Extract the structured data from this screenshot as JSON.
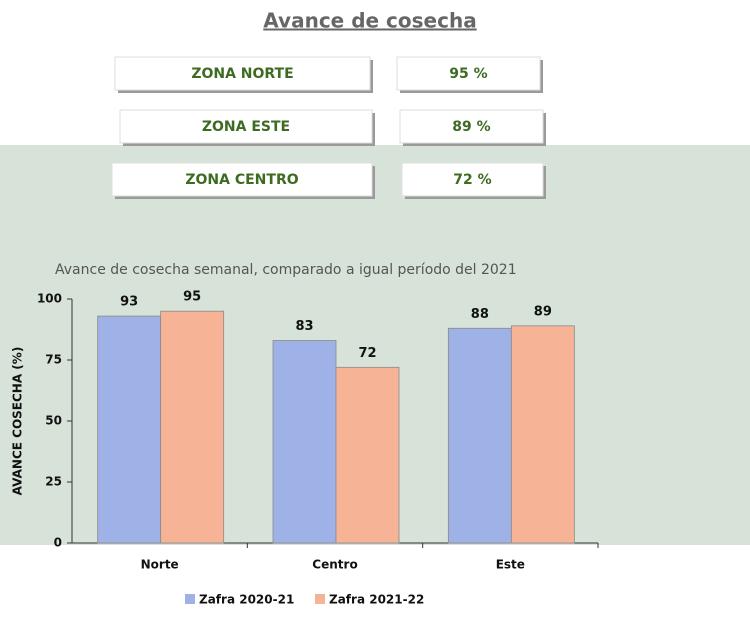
{
  "title": "Avance de cosecha",
  "zones": [
    {
      "label": "ZONA NORTE",
      "value": "95 %"
    },
    {
      "label": "ZONA ESTE",
      "value": "89 %"
    },
    {
      "label": "ZONA CENTRO",
      "value": "72 %"
    }
  ],
  "chart_data": {
    "type": "bar",
    "title": "Avance de cosecha  semanal, comparado  a igual período del 2021",
    "y_label": "AVANCE COSECHA (%)",
    "categories": [
      "Norte",
      "Centro",
      "Este"
    ],
    "series": [
      {
        "name": "Zafra 2020-21",
        "color": "#9fb2e8",
        "values": [
          93,
          83,
          88
        ]
      },
      {
        "name": "Zafra 2021-22",
        "color": "#f7b395",
        "values": [
          95,
          72,
          89
        ]
      }
    ],
    "ylim": [
      0,
      100
    ],
    "yticks": [
      0,
      25,
      50,
      75,
      100
    ],
    "grid": false,
    "legend": "bottom"
  }
}
